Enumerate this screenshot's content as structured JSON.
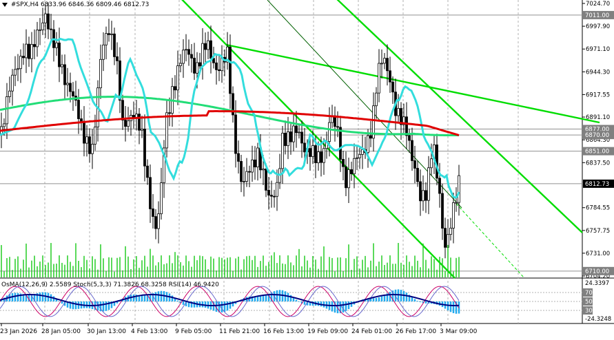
{
  "chart": {
    "symbol": "#SPX,H4",
    "ohlc": "6833.96 6846.36 6809.46 6812.73",
    "indicator_header": "OsMA(12,26,9) 2.5589 Stoch(5,3,3) 71.3826 68.3258 RSI(14) 46.9420",
    "price_labels": [
      "7024.70",
      "6997.90",
      "6971.10",
      "6944.30",
      "6917.55",
      "6891.10",
      "6864.30",
      "6837.50",
      "6784.55",
      "6757.75",
      "6731.00",
      "6704.20"
    ],
    "highlight_labels": [
      {
        "text": "7011.00",
        "color": "#ffffff",
        "bg": "#808080"
      },
      {
        "text": "6877.00",
        "color": "#ffffff",
        "bg": "#808080"
      },
      {
        "text": "6870.00",
        "color": "#ffffff",
        "bg": "#808080"
      },
      {
        "text": "6851.00",
        "color": "#ffffff",
        "bg": "#808080"
      },
      {
        "text": "6812.73",
        "color": "#ffffff",
        "bg": "#000000"
      },
      {
        "text": "6710.00",
        "color": "#ffffff",
        "bg": "#808080"
      }
    ],
    "indicator_labels": [
      "24.3397",
      "70",
      "50",
      "30",
      "-24.3248"
    ],
    "time_labels": [
      "23 Jan 2026",
      "28 Jan 05:00",
      "30 Jan 13:00",
      "4 Feb 13:00",
      "9 Feb 05:00",
      "11 Feb 21:00",
      "16 Feb 13:00",
      "19 Feb 09:00",
      "24 Feb 01:00",
      "26 Feb 17:00",
      "3 Mar 09:00"
    ],
    "colors": {
      "candles": "#000000",
      "ema_slow": "#e00000",
      "ema_mid": "#22dd77",
      "ema_fast": "#33dddd",
      "channel": "#00dd00",
      "trendline": "#006000",
      "volume": "#22cc22",
      "osma": "#22aaee",
      "stoch_main": "#000080",
      "stoch_signal": "#cc0066",
      "rsi": "#000080"
    }
  }
}
